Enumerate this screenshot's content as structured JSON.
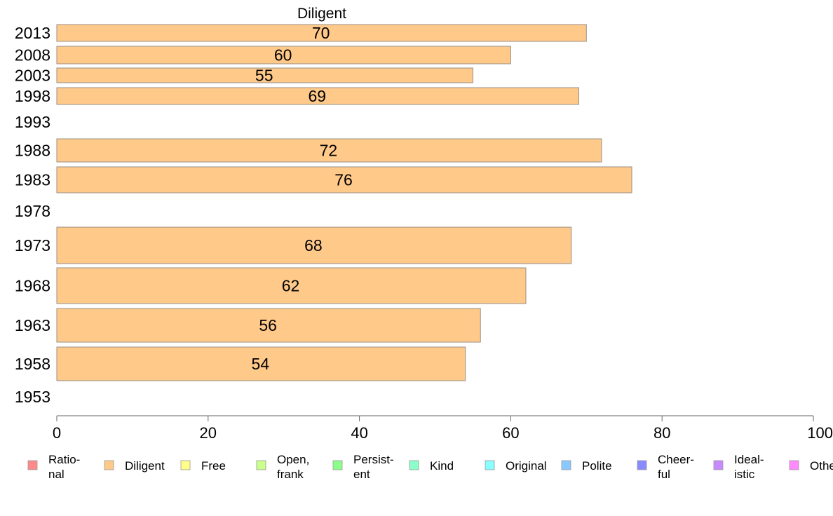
{
  "chart_data": {
    "type": "bar",
    "orientation": "horizontal",
    "title": "Diligent",
    "xlim": [
      0,
      100
    ],
    "x_ticks": [
      0,
      20,
      40,
      60,
      80,
      100
    ],
    "grid": false,
    "legend_position": "bottom",
    "bar_color": "#ffc98a",
    "categories": [
      "2013",
      "2008",
      "2003",
      "1998",
      "1993",
      "1988",
      "1983",
      "1978",
      "1973",
      "1968",
      "1963",
      "1958",
      "1953"
    ],
    "values": [
      70,
      60,
      55,
      69,
      null,
      72,
      76,
      null,
      68,
      62,
      56,
      54,
      null
    ],
    "value_labels": [
      "70",
      "60",
      "55",
      "69",
      "",
      "72",
      "76",
      "",
      "68",
      "62",
      "56",
      "54",
      ""
    ],
    "legend": [
      {
        "line1": "Ratio-",
        "line2": "nal",
        "color": "#ff8a8a"
      },
      {
        "line1": "Diligent",
        "line2": "",
        "color": "#ffc98a"
      },
      {
        "line1": "Free",
        "line2": "",
        "color": "#ffff8a"
      },
      {
        "line1": "Open,",
        "line2": "frank",
        "color": "#c9ff8a"
      },
      {
        "line1": "Persist-",
        "line2": "ent",
        "color": "#8aff8a"
      },
      {
        "line1": "Kind",
        "line2": "",
        "color": "#8affc9"
      },
      {
        "line1": "Original",
        "line2": "",
        "color": "#8affff"
      },
      {
        "line1": "Polite",
        "line2": "",
        "color": "#8ac9ff"
      },
      {
        "line1": "Cheer-",
        "line2": "ful",
        "color": "#8a8aff"
      },
      {
        "line1": "Ideal-",
        "line2": "istic",
        "color": "#c98aff"
      },
      {
        "line1": "Other",
        "line2": "",
        "color": "#ff8aff"
      }
    ]
  }
}
